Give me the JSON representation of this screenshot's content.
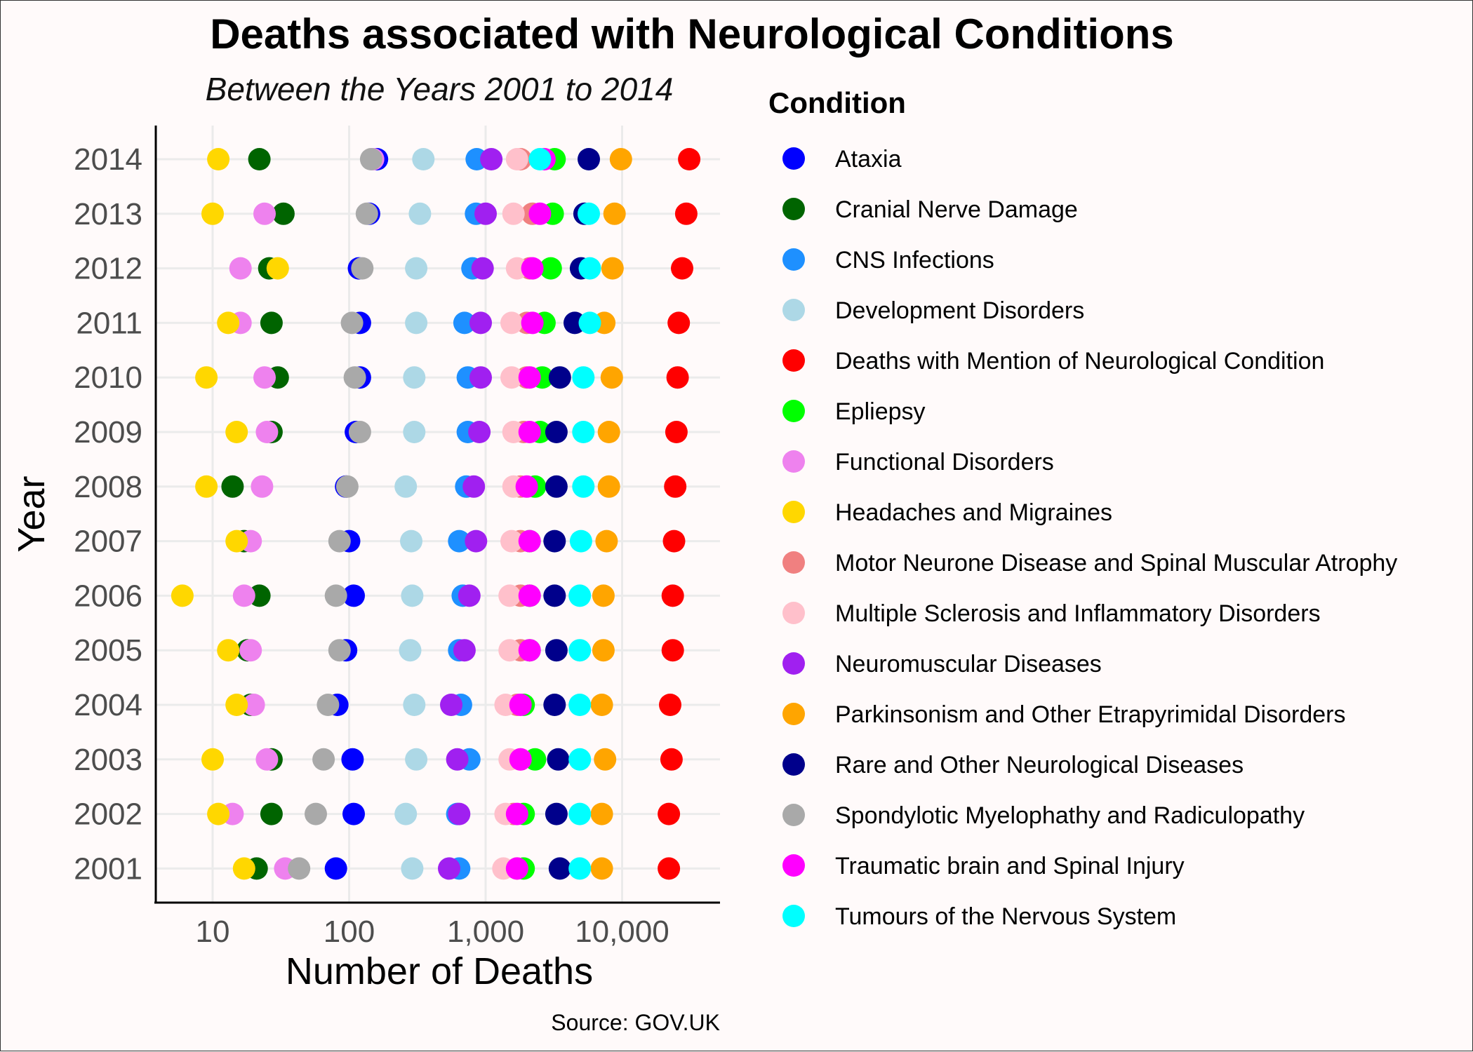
{
  "chart_data": {
    "type": "scatter",
    "title": "Deaths associated with Neurological Conditions",
    "subtitle": "Between the Years 2001 to 2014",
    "xlabel": "Number of Deaths",
    "ylabel": "Year",
    "caption": "Source: GOV.UK",
    "x_scale": "log10",
    "xlim": [
      4,
      40000
    ],
    "x_ticks": [
      10,
      100,
      1000,
      10000
    ],
    "x_tick_labels": [
      "10",
      "100",
      "1,000",
      "10,000"
    ],
    "years": [
      "2001",
      "2002",
      "2003",
      "2004",
      "2005",
      "2006",
      "2007",
      "2008",
      "2009",
      "2010",
      "2011",
      "2012",
      "2013",
      "2014"
    ],
    "legend_title": "Condition",
    "series": [
      {
        "name": "Ataxia",
        "color": "#0000ff",
        "values": [
          80,
          108,
          106,
          82,
          95,
          108,
          100,
          95,
          112,
          120,
          120,
          118,
          140,
          160
        ]
      },
      {
        "name": "Cranial Nerve Damage",
        "color": "#006400",
        "values": [
          21,
          27,
          27,
          19,
          18,
          22,
          17,
          14,
          27,
          30,
          27,
          26,
          33,
          22
        ]
      },
      {
        "name": "CNS Infections",
        "color": "#1e90ff",
        "values": [
          640,
          620,
          760,
          660,
          640,
          680,
          640,
          720,
          740,
          740,
          700,
          800,
          850,
          860
        ]
      },
      {
        "name": "Development Disorders",
        "color": "#add8e6",
        "values": [
          290,
          260,
          310,
          300,
          280,
          290,
          285,
          260,
          300,
          300,
          310,
          310,
          330,
          350
        ]
      },
      {
        "name": "Deaths with Mention of Neurological Condition",
        "color": "#ff0000",
        "values": [
          22000,
          22000,
          23000,
          22500,
          23500,
          23500,
          24000,
          24500,
          25000,
          25500,
          26000,
          27500,
          29500,
          31000
        ]
      },
      {
        "name": "Epliepsy",
        "color": "#00ff00",
        "values": [
          1900,
          1900,
          2300,
          1900,
          2100,
          2100,
          2100,
          2300,
          2500,
          2600,
          2700,
          3000,
          3100,
          3200
        ]
      },
      {
        "name": "Functional Disorders",
        "color": "#ee82ee",
        "values": [
          34,
          14,
          25,
          20,
          19,
          17,
          19,
          23,
          25,
          24,
          16,
          16,
          24,
          150
        ]
      },
      {
        "name": "Headaches and Migraines",
        "color": "#ffd700",
        "values": [
          17,
          11,
          10,
          15,
          13,
          6,
          15,
          9,
          15,
          9,
          13,
          30,
          10,
          11
        ]
      },
      {
        "name": "Motor Neurone Disease and Spinal Muscular Atrophy",
        "color": "#f08080",
        "values": [
          1700,
          1600,
          1800,
          1700,
          1800,
          1800,
          1800,
          1800,
          1900,
          2000,
          2000,
          2100,
          2200,
          1800
        ]
      },
      {
        "name": "Multiple Sclerosis and Inflammatory Disorders",
        "color": "#ffc0cb",
        "values": [
          1350,
          1400,
          1500,
          1400,
          1500,
          1500,
          1550,
          1600,
          1600,
          1550,
          1550,
          1700,
          1600,
          1700
        ]
      },
      {
        "name": "Neuromuscular Diseases",
        "color": "#a020f0",
        "values": [
          540,
          640,
          620,
          560,
          700,
          760,
          850,
          820,
          900,
          920,
          920,
          950,
          1000,
          1100
        ]
      },
      {
        "name": "Parkinsonism and Other Etrapyrimidal Disorders",
        "color": "#ffa500",
        "values": [
          7100,
          7100,
          7500,
          7100,
          7300,
          7300,
          7700,
          8000,
          8000,
          8400,
          7400,
          8500,
          8800,
          9800
        ]
      },
      {
        "name": "Rare and Other Neurological Diseases",
        "color": "#00008b",
        "values": [
          3500,
          3300,
          3400,
          3200,
          3300,
          3200,
          3200,
          3300,
          3300,
          3500,
          4500,
          5000,
          5300,
          5700
        ]
      },
      {
        "name": "Spondylotic Myelophathy and Radiculopathy",
        "color": "#a9a9a9",
        "values": [
          43,
          57,
          65,
          70,
          85,
          80,
          85,
          97,
          120,
          110,
          105,
          125,
          135,
          145
        ]
      },
      {
        "name": "Traumatic brain and Spinal Injury",
        "color": "#ff00ff",
        "values": [
          1700,
          1700,
          1800,
          1800,
          2100,
          2100,
          2100,
          2000,
          2100,
          2100,
          2200,
          2200,
          2500,
          2700
        ]
      },
      {
        "name": "Tumours of the Nervous System",
        "color": "#00ffff",
        "values": [
          4900,
          4900,
          4900,
          4900,
          4900,
          4900,
          5000,
          5200,
          5200,
          5200,
          5800,
          5800,
          5700,
          2500
        ]
      }
    ]
  }
}
